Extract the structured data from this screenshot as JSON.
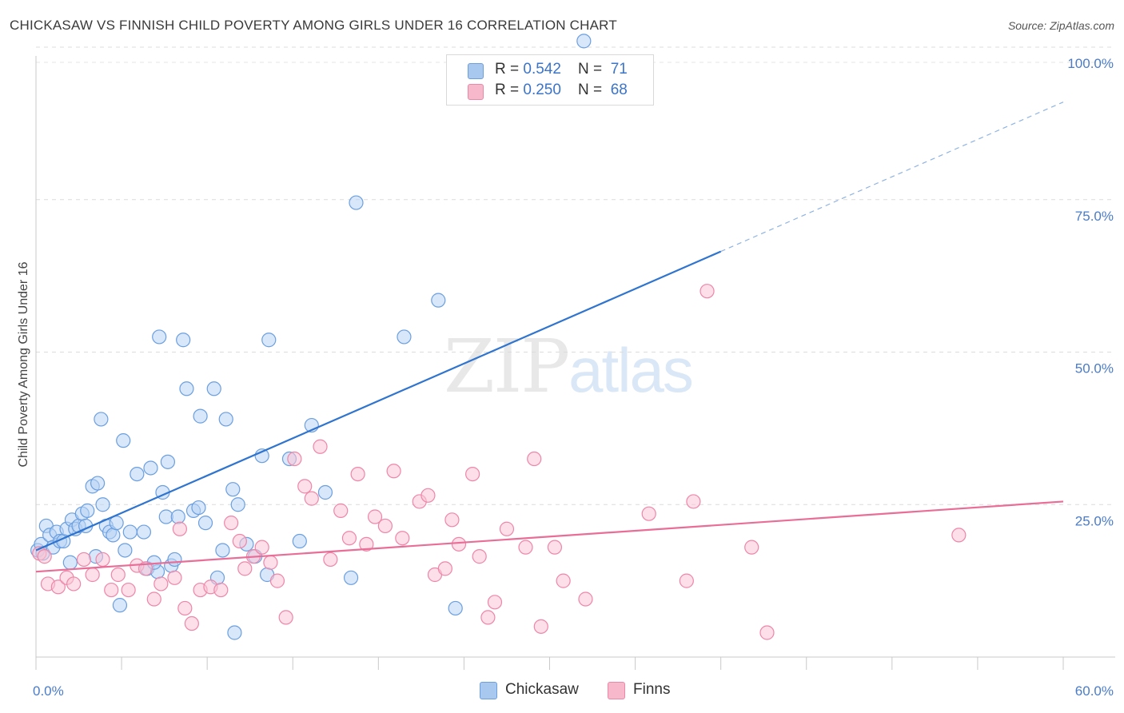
{
  "header": {
    "title": "CHICKASAW VS FINNISH CHILD POVERTY AMONG GIRLS UNDER 16 CORRELATION CHART",
    "source": "Source: ZipAtlas.com"
  },
  "watermark": {
    "zip": "ZIP",
    "atlas": "atlas"
  },
  "legend": {
    "rows": [
      {
        "r_label": "R = ",
        "r_value": "0.542",
        "n_label": "N = ",
        "n_value": "71",
        "color": "#a9c8f0"
      },
      {
        "r_label": "R = ",
        "r_value": "0.250",
        "n_label": "N = ",
        "n_value": "68",
        "color": "#f7b8cc"
      }
    ]
  },
  "chart_data": {
    "type": "scatter",
    "title": "CHICKASAW VS FINNISH CHILD POVERTY AMONG GIRLS UNDER 16 CORRELATION CHART",
    "ylabel": "Child Poverty Among Girls Under 16",
    "xlim": [
      0,
      60
    ],
    "ylim": [
      0,
      103
    ],
    "x_tick_labels": [
      "0.0%",
      "60.0%"
    ],
    "y_ticks": [
      25,
      50,
      75,
      100
    ],
    "y_tick_labels": [
      "25.0%",
      "50.0%",
      "75.0%",
      "100.0%"
    ],
    "grid": true,
    "legend_position": "bottom",
    "series": [
      {
        "name": "Chickasaw",
        "color": "#6b9fe0",
        "fill": "#b8d3f4",
        "points": [
          [
            0.1,
            17.5
          ],
          [
            0.3,
            18.5
          ],
          [
            0.4,
            17
          ],
          [
            0.6,
            21.5
          ],
          [
            0.8,
            20
          ],
          [
            1,
            18
          ],
          [
            1.2,
            20.5
          ],
          [
            1.4,
            19
          ],
          [
            1.6,
            19
          ],
          [
            1.8,
            21
          ],
          [
            2,
            15.5
          ],
          [
            2.1,
            22.5
          ],
          [
            2.3,
            21
          ],
          [
            2.5,
            21.5
          ],
          [
            2.7,
            23.5
          ],
          [
            2.9,
            21.5
          ],
          [
            3,
            24
          ],
          [
            3.3,
            28
          ],
          [
            3.5,
            16.5
          ],
          [
            3.6,
            28.5
          ],
          [
            3.8,
            39
          ],
          [
            3.9,
            25
          ],
          [
            4.1,
            21.5
          ],
          [
            4.3,
            20.5
          ],
          [
            4.5,
            20
          ],
          [
            4.7,
            22
          ],
          [
            4.9,
            8.5
          ],
          [
            5.1,
            35.5
          ],
          [
            5.2,
            17.5
          ],
          [
            5.5,
            20.5
          ],
          [
            5.9,
            30
          ],
          [
            6.3,
            20.5
          ],
          [
            6.5,
            14.5
          ],
          [
            6.7,
            31
          ],
          [
            7.1,
            14
          ],
          [
            7.2,
            52.5
          ],
          [
            7.4,
            27
          ],
          [
            7.6,
            23
          ],
          [
            7.7,
            32
          ],
          [
            7.9,
            15
          ],
          [
            8.1,
            16
          ],
          [
            8.3,
            23
          ],
          [
            8.6,
            52
          ],
          [
            8.8,
            44
          ],
          [
            9.2,
            24
          ],
          [
            9.5,
            24.5
          ],
          [
            9.6,
            39.5
          ],
          [
            9.9,
            22
          ],
          [
            10.4,
            44
          ],
          [
            10.6,
            13
          ],
          [
            10.9,
            17.5
          ],
          [
            11.1,
            39
          ],
          [
            11.5,
            27.5
          ],
          [
            11.6,
            4
          ],
          [
            11.8,
            25
          ],
          [
            12.3,
            18.5
          ],
          [
            13.2,
            33
          ],
          [
            13.5,
            13.5
          ],
          [
            13.6,
            52
          ],
          [
            14.8,
            32.5
          ],
          [
            15.4,
            19
          ],
          [
            16.1,
            38
          ],
          [
            16.9,
            27
          ],
          [
            18.4,
            13
          ],
          [
            18.7,
            74.5
          ],
          [
            21.5,
            52.5
          ],
          [
            23.5,
            58.5
          ],
          [
            24.5,
            8
          ],
          [
            32,
            101
          ],
          [
            12.8,
            16.5
          ],
          [
            6.9,
            15.5
          ]
        ]
      },
      {
        "name": "Finns",
        "color": "#ee86a8",
        "fill": "#f9c5d6",
        "points": [
          [
            0.2,
            17
          ],
          [
            0.5,
            16.5
          ],
          [
            0.7,
            12
          ],
          [
            1.3,
            11.5
          ],
          [
            1.8,
            13
          ],
          [
            2.2,
            12
          ],
          [
            2.8,
            16
          ],
          [
            3.3,
            13.5
          ],
          [
            3.9,
            16
          ],
          [
            4.4,
            11
          ],
          [
            4.8,
            13.5
          ],
          [
            5.4,
            11
          ],
          [
            5.9,
            15
          ],
          [
            6.4,
            14.5
          ],
          [
            6.9,
            9.5
          ],
          [
            7.3,
            12
          ],
          [
            8.1,
            13
          ],
          [
            8.4,
            21
          ],
          [
            8.7,
            8
          ],
          [
            9.1,
            5.5
          ],
          [
            9.6,
            11
          ],
          [
            10.2,
            11.5
          ],
          [
            10.8,
            11
          ],
          [
            11.4,
            22
          ],
          [
            11.9,
            19
          ],
          [
            12.2,
            14.5
          ],
          [
            12.7,
            16.5
          ],
          [
            13.2,
            18
          ],
          [
            13.7,
            15.5
          ],
          [
            14.1,
            12.5
          ],
          [
            14.6,
            6.5
          ],
          [
            15.1,
            32.5
          ],
          [
            15.7,
            28
          ],
          [
            16.1,
            26
          ],
          [
            16.6,
            34.5
          ],
          [
            17.2,
            16
          ],
          [
            17.8,
            24
          ],
          [
            18.3,
            19.5
          ],
          [
            18.8,
            30
          ],
          [
            19.3,
            18.5
          ],
          [
            19.8,
            23
          ],
          [
            20.4,
            21.5
          ],
          [
            20.9,
            30.5
          ],
          [
            21.4,
            19.5
          ],
          [
            22.4,
            25.5
          ],
          [
            22.9,
            26.5
          ],
          [
            23.3,
            13.5
          ],
          [
            23.9,
            14.5
          ],
          [
            24.3,
            22.5
          ],
          [
            24.7,
            18.5
          ],
          [
            25.5,
            30
          ],
          [
            25.9,
            16.5
          ],
          [
            26.4,
            6.5
          ],
          [
            26.8,
            9
          ],
          [
            27.5,
            21
          ],
          [
            28.6,
            18
          ],
          [
            29.1,
            32.5
          ],
          [
            29.5,
            5
          ],
          [
            30.3,
            18
          ],
          [
            30.8,
            12.5
          ],
          [
            32.1,
            9.5
          ],
          [
            35.8,
            23.5
          ],
          [
            38,
            12.5
          ],
          [
            38.4,
            25.5
          ],
          [
            39.2,
            60
          ],
          [
            41.8,
            18
          ],
          [
            42.7,
            4
          ],
          [
            53.9,
            20
          ]
        ]
      }
    ],
    "trendlines": [
      {
        "series": "Chickasaw",
        "x_solid": [
          0,
          40
        ],
        "y_solid": [
          17.5,
          66.5
        ],
        "x_dashed": [
          40,
          60
        ],
        "y_dashed": [
          66.5,
          91
        ],
        "color": "#2f74cf"
      },
      {
        "series": "Finns",
        "x": [
          0,
          60
        ],
        "y": [
          14,
          25.5
        ],
        "color": "#e86d97"
      }
    ]
  }
}
